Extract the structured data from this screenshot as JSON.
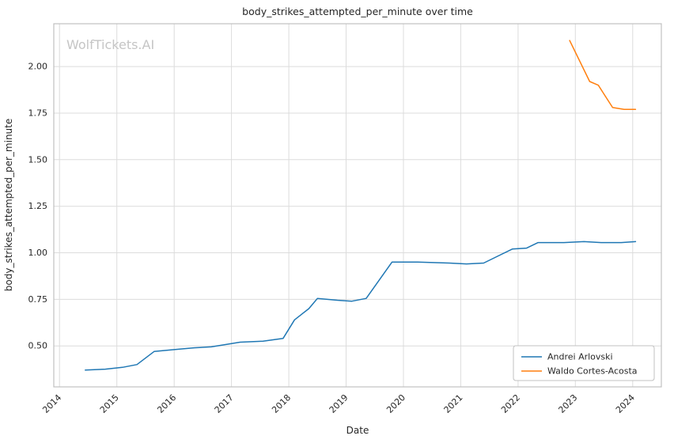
{
  "chart_data": {
    "type": "line",
    "title": "body_strikes_attempted_per_minute over time",
    "xlabel": "Date",
    "ylabel": "body_strikes_attempted_per_minute",
    "watermark": "WolfTickets.AI",
    "grid": true,
    "legend_position": "lower right",
    "xlim": [
      2013.9,
      2024.5
    ],
    "ylim": [
      0.28,
      2.23
    ],
    "x_ticks": [
      2014,
      2015,
      2016,
      2017,
      2018,
      2019,
      2020,
      2021,
      2022,
      2023,
      2024
    ],
    "y_ticks": [
      0.5,
      0.75,
      1.0,
      1.25,
      1.5,
      1.75,
      2.0
    ],
    "colors": {
      "background": "#ffffff",
      "grid": "#dcdcdc",
      "spine": "#c0c0c0",
      "text": "#262626",
      "watermark": "#c5c5c5"
    },
    "series": [
      {
        "name": "Andrei Arlovski",
        "color": "#1f77b4",
        "x": [
          2014.45,
          2014.8,
          2015.1,
          2015.35,
          2015.65,
          2016.0,
          2016.35,
          2016.65,
          2016.95,
          2017.15,
          2017.55,
          2017.9,
          2018.1,
          2018.35,
          2018.5,
          2018.85,
          2019.1,
          2019.35,
          2019.8,
          2020.25,
          2020.8,
          2021.1,
          2021.4,
          2021.9,
          2022.15,
          2022.35,
          2022.8,
          2023.15,
          2023.45,
          2023.8,
          2024.05
        ],
        "y": [
          0.37,
          0.375,
          0.385,
          0.4,
          0.47,
          0.48,
          0.49,
          0.495,
          0.51,
          0.52,
          0.525,
          0.54,
          0.64,
          0.7,
          0.755,
          0.745,
          0.74,
          0.755,
          0.95,
          0.95,
          0.945,
          0.94,
          0.945,
          1.02,
          1.025,
          1.055,
          1.055,
          1.06,
          1.055,
          1.055,
          1.06
        ]
      },
      {
        "name": "Waldo Cortes-Acosta",
        "color": "#ff7f0e",
        "x": [
          2022.9,
          2023.25,
          2023.4,
          2023.65,
          2023.85,
          2024.05
        ],
        "y": [
          2.14,
          1.92,
          1.9,
          1.78,
          1.77,
          1.77
        ]
      }
    ]
  }
}
